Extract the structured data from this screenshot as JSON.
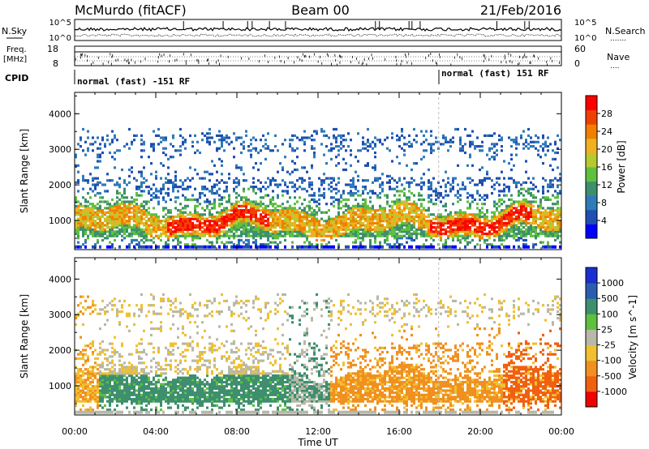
{
  "header": {
    "station": "McMurdo (fitACF)",
    "beam": "Beam 00",
    "date": "21/Feb/2016"
  },
  "strips": {
    "nsky_label": "N.Sky",
    "nsearch_label": "N.Search",
    "freq_label_1": "Freq.",
    "freq_label_2": "[MHz]",
    "nave_label": "Nave",
    "cpid_label": "CPID",
    "sky_ticks_left": [
      "10^5",
      "10^0"
    ],
    "sky_ticks_right": [
      "10^5",
      "10^0"
    ],
    "freq_ticks_left": [
      "18",
      "8"
    ],
    "nave_ticks_right": [
      "60",
      "0"
    ],
    "cpid_segments": [
      "normal (fast) -151 RF",
      "normal (fast) 151 RF"
    ]
  },
  "x_axis": {
    "ticks": [
      "00:00",
      "04:00",
      "08:00",
      "12:00",
      "16:00",
      "20:00",
      "00:00"
    ],
    "label": "Time UT"
  },
  "chart_data": [
    {
      "type": "heatmap",
      "name": "power",
      "ylabel": "Slant Range [km]",
      "yticks": [
        1000,
        2000,
        3000,
        4000
      ],
      "ylim": [
        180,
        4600
      ],
      "xlim_hours": [
        0,
        24
      ],
      "colorbar": {
        "label": "Power [dB]",
        "ticks": [
          "28",
          "24",
          "20",
          "16",
          "12",
          "8",
          "4"
        ],
        "colors": [
          "#0000ff",
          "#1f4fb0",
          "#2f7ab8",
          "#3d8f6e",
          "#5fbf3f",
          "#b8c830",
          "#f0b020",
          "#f08000",
          "#f04000",
          "#ff0000"
        ]
      }
    },
    {
      "type": "heatmap",
      "name": "velocity",
      "ylabel": "Slant Range [km]",
      "yticks": [
        1000,
        2000,
        3000,
        4000
      ],
      "ylim": [
        180,
        4600
      ],
      "xlim_hours": [
        0,
        24
      ],
      "colorbar": {
        "label": "Velocity [m s^-1]",
        "ticks": [
          "1000",
          "500",
          "100",
          "25",
          "-25",
          "-100",
          "-500",
          "-1000"
        ],
        "colors": [
          "#1a2fd0",
          "#2a5db0",
          "#3d8f6e",
          "#5fbf3f",
          "#b8b8a8",
          "#f0c030",
          "#f09020",
          "#f06010",
          "#f00000"
        ]
      }
    }
  ]
}
